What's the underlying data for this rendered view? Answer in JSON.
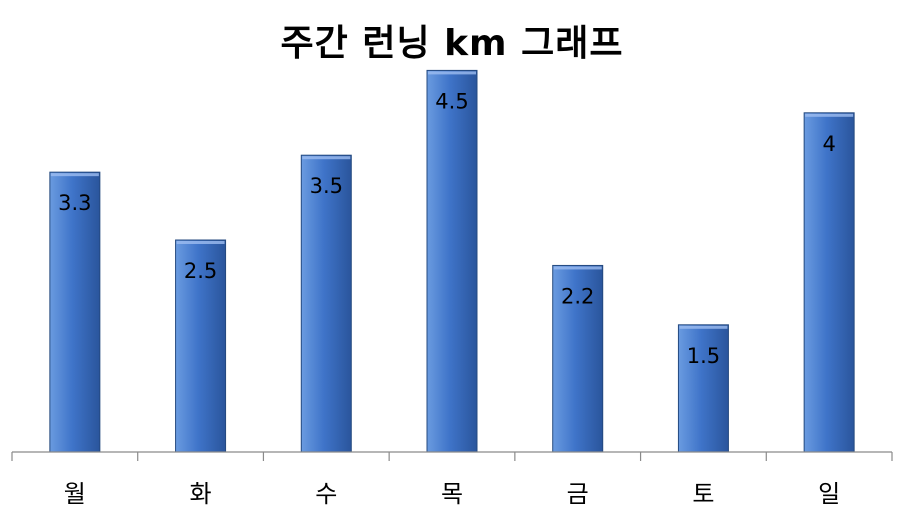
{
  "chart_data": {
    "type": "bar",
    "title": "주간 런닝 km 그래프",
    "categories": [
      "월",
      "화",
      "수",
      "목",
      "금",
      "토",
      "일"
    ],
    "values": [
      3.3,
      2.5,
      3.5,
      4.5,
      2.2,
      1.5,
      4
    ],
    "data_labels": [
      "3.3",
      "2.5",
      "3.5",
      "4.5",
      "2.2",
      "1.5",
      "4"
    ],
    "ylim": [
      0,
      5
    ],
    "grid": false,
    "legend": "none",
    "colors": {
      "bar_light": "#6a9be0",
      "bar_mid": "#3f74c9",
      "bar_dark": "#2a559c",
      "bar_edge": "#24497f",
      "axis": "#8a8a8a"
    }
  }
}
